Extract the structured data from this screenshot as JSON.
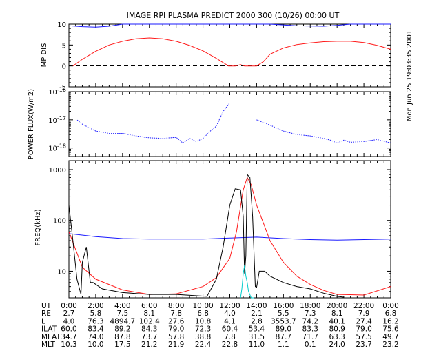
{
  "title": "IMAGE  RPI PLASMA PREDICT 2000 300 (10/26) 00:00 UT",
  "timestamp": "Mon Jun 25 19:03:35 2001",
  "colors": {
    "axes": "#000000",
    "blue_series": "#1a1aff",
    "red_series": "#ff1a1a",
    "black_series": "#000000",
    "cyan_series": "#00cccc"
  },
  "chart_data": [
    {
      "type": "line",
      "ylabel": "MP DIS",
      "ylim": [
        -5,
        10
      ],
      "yticks": [
        -5,
        0,
        5,
        10
      ],
      "yticklabels": [
        "-5",
        "0",
        "5",
        "10"
      ],
      "reference_line": {
        "y": 0,
        "style": "dashed"
      },
      "series": [
        {
          "color": "blue",
          "x": [
            0.1,
            1.0,
            2.0,
            3.0,
            4.0,
            4.8,
            13.9,
            15.0,
            17.0,
            19.0,
            20.0,
            21.0,
            22.0,
            23.0,
            24.0
          ],
          "y": [
            9.6,
            9.4,
            9.3,
            9.5,
            10.0,
            10.3,
            10.3,
            10.0,
            9.6,
            9.5,
            9.7,
            10.0,
            10.3,
            10.5,
            10.6
          ]
        },
        {
          "color": "red",
          "x": [
            0.3,
            1.0,
            2.0,
            3.0,
            4.0,
            5.0,
            6.0,
            7.0,
            8.0,
            9.0,
            10.0,
            11.0,
            11.9,
            12.4,
            12.8,
            13.1,
            14.0,
            14.5,
            15.0,
            16.0,
            17.0,
            18.0,
            19.0,
            20.0,
            21.0,
            22.0,
            23.0,
            24.0
          ],
          "y": [
            0.0,
            1.6,
            3.5,
            5.0,
            5.9,
            6.5,
            6.7,
            6.5,
            5.9,
            4.9,
            3.6,
            1.8,
            0.0,
            0.0,
            0.3,
            0.0,
            0.0,
            1.0,
            2.8,
            4.3,
            5.1,
            5.5,
            5.8,
            5.9,
            5.9,
            5.6,
            4.9,
            4.0
          ]
        }
      ]
    },
    {
      "type": "line",
      "ylabel": "POWER FLUX(W/m2)",
      "yscale": "log",
      "ylim": [
        5e-19,
        1e-16
      ],
      "yticklabels": [
        "10^-16",
        "10^-17",
        "10^-18"
      ],
      "series": [
        {
          "color": "blue",
          "style": "dotted",
          "x": [
            0.5,
            1.0,
            2.0,
            3.0,
            4.0,
            5.0,
            6.0,
            7.0,
            8.0,
            8.5,
            9.0,
            9.5,
            10.0,
            10.5,
            11.0,
            11.5,
            12.0
          ],
          "y": [
            1.1e-17,
            7e-18,
            4e-18,
            3.3e-18,
            3.3e-18,
            2.7e-18,
            2.3e-18,
            2.2e-18,
            2.4e-18,
            1.5e-18,
            2.2e-18,
            1.7e-18,
            2.2e-18,
            3.8e-18,
            6e-18,
            2e-17,
            4e-17
          ]
        },
        {
          "color": "blue",
          "style": "dotted",
          "x": [
            14.0,
            15.0,
            16.0,
            17.0,
            18.0,
            19.0,
            19.5,
            20.0,
            20.5,
            21.0,
            22.0,
            23.0,
            24.0
          ],
          "y": [
            1e-17,
            6.5e-18,
            4e-18,
            3e-18,
            2.7e-18,
            2.2e-18,
            1.9e-18,
            1.5e-18,
            1.9e-18,
            1.6e-18,
            1.7e-18,
            2e-18,
            1.5e-18
          ]
        }
      ]
    },
    {
      "type": "line",
      "ylabel": "FREQ(kHz)",
      "yscale": "log",
      "ylim": [
        3,
        1500
      ],
      "yticklabels": [
        "1000",
        "100",
        "10"
      ],
      "series": [
        {
          "color": "blue",
          "x": [
            0.0,
            2.0,
            4.0,
            6.0,
            8.0,
            10.0,
            12.0,
            14.0,
            16.0,
            18.0,
            20.0,
            22.0,
            24.0
          ],
          "y": [
            55,
            48,
            44,
            43,
            43,
            43,
            45,
            47,
            44,
            42,
            41,
            42,
            43
          ]
        },
        {
          "color": "red",
          "x": [
            0.0,
            1.0,
            2.0,
            4.0,
            6.0,
            8.0,
            10.0,
            11.0,
            12.0,
            12.5,
            13.0,
            13.3,
            13.6,
            14.0,
            14.5,
            15.0,
            16.0,
            17.0,
            18.0,
            19.0,
            20.0,
            22.0,
            24.0
          ],
          "y": [
            60,
            12,
            7,
            4.3,
            3.5,
            3.6,
            5,
            7.5,
            18,
            60,
            400,
            700,
            500,
            200,
            90,
            40,
            15,
            8,
            5.5,
            4.2,
            3.5,
            3.4,
            5
          ]
        },
        {
          "color": "black",
          "x": [
            0.0,
            0.3,
            0.6,
            0.9,
            1.0,
            1.3,
            1.6,
            1.8,
            2.5,
            4.0,
            6.0,
            8.0,
            10.3,
            11.0,
            11.5,
            12.0,
            12.4,
            12.8,
            13.0,
            13.1,
            13.2,
            13.3,
            13.5,
            13.7,
            13.9,
            14.0,
            14.2,
            14.6,
            15.0,
            16.0,
            17.0,
            18.0,
            19.0,
            20.0,
            20.5
          ],
          "y": [
            200,
            40,
            7,
            3.5,
            15,
            30,
            6,
            6,
            4.5,
            3.8,
            3.5,
            3.5,
            3.2,
            7,
            30,
            200,
            420,
            400,
            120,
            9,
            20,
            800,
            700,
            120,
            5,
            4.8,
            10,
            10,
            8,
            6,
            5,
            4.5,
            3.7,
            3.2,
            3.1
          ]
        },
        {
          "color": "cyan",
          "x": [
            12.8,
            12.9,
            13.0,
            13.1,
            13.2,
            13.3,
            13.4,
            13.6,
            13.8
          ],
          "y": [
            2.9,
            4.5,
            9,
            13,
            8,
            6,
            4,
            3,
            2.9
          ]
        }
      ]
    }
  ],
  "x_axis": {
    "range": [
      0,
      24
    ],
    "ticks": [
      0,
      2,
      4,
      6,
      8,
      10,
      12,
      14,
      16,
      18,
      20,
      22,
      24
    ]
  },
  "table": {
    "rows": [
      {
        "label": "UT",
        "values": [
          "0:00",
          "2:00",
          "4:00",
          "6:00",
          "8:00",
          "10:00",
          "12:00",
          "14:00",
          "16:00",
          "18:00",
          "20:00",
          "22:00",
          "0:00"
        ]
      },
      {
        "label": "RE",
        "values": [
          "2.7",
          "5.8",
          "7.5",
          "8.1",
          "7.8",
          "6.8",
          "4.0",
          "2.1",
          "5.5",
          "7.3",
          "8.1",
          "7.9",
          "6.8"
        ]
      },
      {
        "label": "L",
        "values": [
          "4.0",
          "76.3",
          "4894.7",
          "102.4",
          "27.6",
          "10.8",
          "4.1",
          "2.8",
          "3553.7",
          "74.2",
          "40.1",
          "27.4",
          "16.2"
        ]
      },
      {
        "label": "ILAT",
        "values": [
          "60.0",
          "83.4",
          "89.2",
          "84.3",
          "79.0",
          "72.3",
          "60.4",
          "53.4",
          "89.0",
          "83.3",
          "80.9",
          "79.0",
          "75.6"
        ]
      },
      {
        "label": "MLAT",
        "values": [
          "34.7",
          "74.0",
          "87.8",
          "73.7",
          "57.8",
          "38.8",
          "7.8",
          "31.5",
          "87.7",
          "71.7",
          "63.3",
          "57.5",
          "49.7"
        ]
      },
      {
        "label": "MLT",
        "values": [
          "10.3",
          "10.0",
          "17.5",
          "21.2",
          "21.9",
          "22.4",
          "22.8",
          "11.0",
          "1.1",
          "0.1",
          "24.0",
          "23.7",
          "23.2"
        ]
      }
    ]
  }
}
